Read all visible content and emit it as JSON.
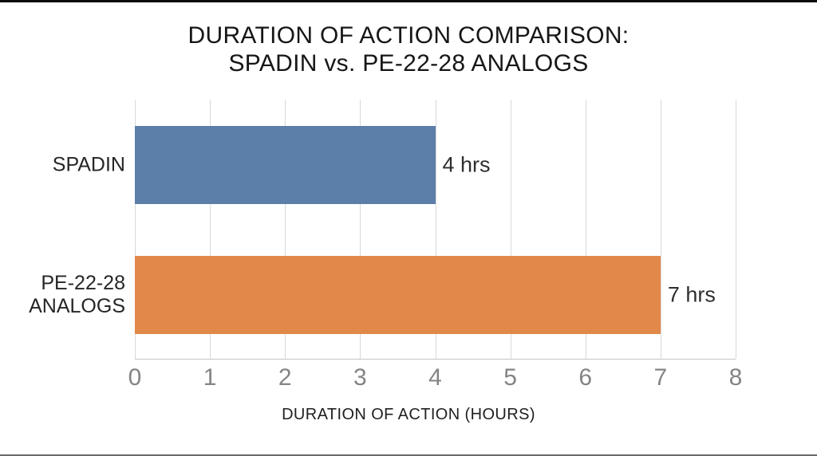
{
  "title": {
    "line1": "DURATION OF ACTION COMPARISON:",
    "line2": "SPADIN vs. PE-22-28 ANALOGS"
  },
  "chart_data": {
    "type": "bar",
    "orientation": "horizontal",
    "title": "DURATION OF ACTION COMPARISON: SPADIN vs. PE-22-28 ANALOGS",
    "categories": [
      "SPADIN",
      "PE-22-28 ANALOGS"
    ],
    "category_display_lines": [
      [
        "SPADIN"
      ],
      [
        "PE-22-28",
        "ANALOGS"
      ]
    ],
    "values": [
      4,
      7
    ],
    "value_labels": [
      "4 hrs",
      "7 hrs"
    ],
    "bar_colors": [
      "#5b7fa8",
      "#e1884a"
    ],
    "xlabel": "DURATION OF ACTION (HOURS)",
    "xlim": [
      0,
      8
    ],
    "xticks": [
      0,
      1,
      2,
      3,
      4,
      5,
      6,
      7,
      8
    ],
    "grid": "vertical-gridlines-only",
    "legend": "none"
  },
  "colors": {
    "background": "#ffffff",
    "bar_blue": "#5b7fa8",
    "bar_orange": "#e1884a",
    "gridline": "#d9d9d9",
    "axis_line": "#c4c4c4",
    "tick_label": "#848484",
    "title_text": "#161616",
    "top_border": "#0c0c0c",
    "bottom_border": "#6b6b6b"
  }
}
